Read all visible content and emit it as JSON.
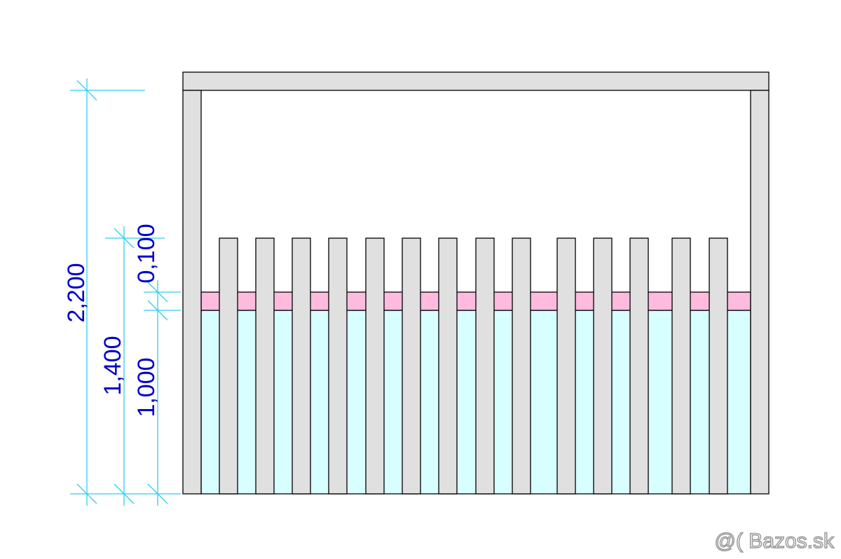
{
  "dimensions": {
    "total_height": "2,200",
    "fence_height": "1,400",
    "panel_height": "1,000",
    "band_height": "0,100"
  },
  "watermark": "@( Bazos.sk"
}
